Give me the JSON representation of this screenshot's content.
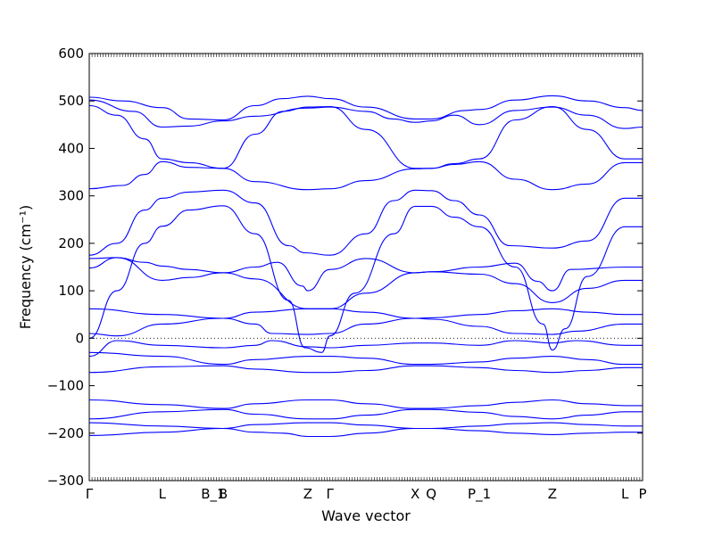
{
  "chart_data": {
    "type": "line",
    "title": "",
    "xlabel": "Wave vector",
    "ylabel": "Frequency (cm⁻¹)",
    "ylim": [
      -300,
      600
    ],
    "y_ticks": [
      -300,
      -200,
      -100,
      0,
      100,
      200,
      300,
      400,
      500,
      600
    ],
    "x_range": [
      0,
      1
    ],
    "x_ticks": [
      {
        "label": "Γ",
        "pos": 0.0
      },
      {
        "label": "L",
        "pos": 0.132
      },
      {
        "label": "B_1",
        "pos": 0.224
      },
      {
        "label": "B",
        "pos": 0.242
      },
      {
        "label": "Z",
        "pos": 0.395
      },
      {
        "label": "Γ",
        "pos": 0.435
      },
      {
        "label": "X",
        "pos": 0.589
      },
      {
        "label": "Q",
        "pos": 0.618
      },
      {
        "label": "P_1",
        "pos": 0.705
      },
      {
        "label": "Z",
        "pos": 0.837
      },
      {
        "label": "L",
        "pos": 0.968
      },
      {
        "label": "P",
        "pos": 1.0
      }
    ],
    "zero_line": {
      "style": "dotted",
      "y": 0
    },
    "series_color": "#0000ff",
    "series": [
      {
        "points": [
          [
            0,
            508
          ],
          [
            0.06,
            500
          ],
          [
            0.132,
            486
          ],
          [
            0.18,
            462
          ],
          [
            0.242,
            460
          ],
          [
            0.3,
            490
          ],
          [
            0.35,
            505
          ],
          [
            0.395,
            510
          ],
          [
            0.435,
            505
          ],
          [
            0.5,
            487
          ],
          [
            0.589,
            462
          ],
          [
            0.618,
            462
          ],
          [
            0.68,
            480
          ],
          [
            0.705,
            482
          ],
          [
            0.77,
            502
          ],
          [
            0.837,
            511
          ],
          [
            0.9,
            500
          ],
          [
            0.968,
            486
          ],
          [
            1,
            480
          ]
        ]
      },
      {
        "points": [
          [
            0,
            502
          ],
          [
            0.08,
            478
          ],
          [
            0.132,
            445
          ],
          [
            0.18,
            447
          ],
          [
            0.242,
            458
          ],
          [
            0.3,
            468
          ],
          [
            0.395,
            485
          ],
          [
            0.435,
            487
          ],
          [
            0.5,
            478
          ],
          [
            0.55,
            462
          ],
          [
            0.589,
            455
          ],
          [
            0.618,
            458
          ],
          [
            0.66,
            470
          ],
          [
            0.705,
            450
          ],
          [
            0.77,
            480
          ],
          [
            0.837,
            487
          ],
          [
            0.9,
            470
          ],
          [
            0.968,
            442
          ],
          [
            1,
            445
          ]
        ]
      },
      {
        "points": [
          [
            0,
            490
          ],
          [
            0.05,
            470
          ],
          [
            0.1,
            420
          ],
          [
            0.132,
            378
          ],
          [
            0.18,
            370
          ],
          [
            0.242,
            358
          ],
          [
            0.3,
            430
          ],
          [
            0.35,
            478
          ],
          [
            0.395,
            487
          ],
          [
            0.435,
            488
          ],
          [
            0.5,
            440
          ],
          [
            0.589,
            358
          ],
          [
            0.618,
            358
          ],
          [
            0.66,
            368
          ],
          [
            0.705,
            378
          ],
          [
            0.77,
            460
          ],
          [
            0.837,
            488
          ],
          [
            0.9,
            440
          ],
          [
            0.968,
            378
          ],
          [
            1,
            378
          ]
        ]
      },
      {
        "points": [
          [
            0,
            315
          ],
          [
            0.06,
            322
          ],
          [
            0.1,
            345
          ],
          [
            0.132,
            372
          ],
          [
            0.18,
            360
          ],
          [
            0.242,
            358
          ],
          [
            0.3,
            330
          ],
          [
            0.395,
            313
          ],
          [
            0.435,
            315
          ],
          [
            0.5,
            332
          ],
          [
            0.589,
            357
          ],
          [
            0.618,
            358
          ],
          [
            0.66,
            366
          ],
          [
            0.705,
            372
          ],
          [
            0.77,
            335
          ],
          [
            0.837,
            313
          ],
          [
            0.9,
            325
          ],
          [
            0.968,
            370
          ],
          [
            1,
            370
          ]
        ]
      },
      {
        "points": [
          [
            0,
            175
          ],
          [
            0.05,
            200
          ],
          [
            0.1,
            270
          ],
          [
            0.132,
            295
          ],
          [
            0.18,
            308
          ],
          [
            0.242,
            312
          ],
          [
            0.3,
            285
          ],
          [
            0.36,
            195
          ],
          [
            0.39,
            180
          ],
          [
            0.435,
            175
          ],
          [
            0.5,
            220
          ],
          [
            0.55,
            290
          ],
          [
            0.589,
            312
          ],
          [
            0.618,
            311
          ],
          [
            0.66,
            290
          ],
          [
            0.705,
            260
          ],
          [
            0.76,
            195
          ],
          [
            0.837,
            190
          ],
          [
            0.9,
            205
          ],
          [
            0.968,
            295
          ],
          [
            1,
            295
          ]
        ]
      },
      {
        "points": [
          [
            0,
            0
          ],
          [
            0.05,
            100
          ],
          [
            0.1,
            200
          ],
          [
            0.132,
            236
          ],
          [
            0.18,
            270
          ],
          [
            0.242,
            279
          ],
          [
            0.3,
            220
          ],
          [
            0.36,
            80
          ],
          [
            0.39,
            -20
          ],
          [
            0.42,
            -30
          ],
          [
            0.435,
            5
          ],
          [
            0.48,
            95
          ],
          [
            0.55,
            220
          ],
          [
            0.589,
            278
          ],
          [
            0.618,
            278
          ],
          [
            0.66,
            255
          ],
          [
            0.705,
            235
          ],
          [
            0.77,
            150
          ],
          [
            0.82,
            30
          ],
          [
            0.837,
            -25
          ],
          [
            0.86,
            20
          ],
          [
            0.9,
            130
          ],
          [
            0.968,
            235
          ],
          [
            1,
            235
          ]
        ]
      },
      {
        "points": [
          [
            0,
            148
          ],
          [
            0.05,
            170
          ],
          [
            0.1,
            160
          ],
          [
            0.132,
            152
          ],
          [
            0.18,
            145
          ],
          [
            0.242,
            138
          ],
          [
            0.3,
            150
          ],
          [
            0.34,
            160
          ],
          [
            0.385,
            110
          ],
          [
            0.395,
            100
          ],
          [
            0.435,
            145
          ],
          [
            0.5,
            168
          ],
          [
            0.589,
            138
          ],
          [
            0.618,
            140
          ],
          [
            0.705,
            150
          ],
          [
            0.77,
            158
          ],
          [
            0.81,
            120
          ],
          [
            0.837,
            100
          ],
          [
            0.87,
            145
          ],
          [
            0.968,
            150
          ],
          [
            1,
            150
          ]
        ]
      },
      {
        "points": [
          [
            0,
            168
          ],
          [
            0.05,
            170
          ],
          [
            0.132,
            122
          ],
          [
            0.18,
            128
          ],
          [
            0.242,
            138
          ],
          [
            0.3,
            125
          ],
          [
            0.395,
            62
          ],
          [
            0.435,
            62
          ],
          [
            0.5,
            95
          ],
          [
            0.589,
            138
          ],
          [
            0.618,
            140
          ],
          [
            0.705,
            135
          ],
          [
            0.77,
            115
          ],
          [
            0.837,
            75
          ],
          [
            0.9,
            105
          ],
          [
            0.968,
            122
          ],
          [
            1,
            122
          ]
        ]
      },
      {
        "points": [
          [
            0,
            62
          ],
          [
            0.132,
            50
          ],
          [
            0.242,
            42
          ],
          [
            0.3,
            55
          ],
          [
            0.395,
            62
          ],
          [
            0.435,
            62
          ],
          [
            0.5,
            55
          ],
          [
            0.589,
            42
          ],
          [
            0.618,
            43
          ],
          [
            0.705,
            50
          ],
          [
            0.77,
            58
          ],
          [
            0.837,
            62
          ],
          [
            0.9,
            55
          ],
          [
            0.968,
            50
          ],
          [
            1,
            50
          ]
        ]
      },
      {
        "points": [
          [
            0,
            10
          ],
          [
            0.05,
            5
          ],
          [
            0.132,
            30
          ],
          [
            0.242,
            42
          ],
          [
            0.3,
            30
          ],
          [
            0.33,
            10
          ],
          [
            0.395,
            8
          ],
          [
            0.435,
            10
          ],
          [
            0.5,
            30
          ],
          [
            0.589,
            42
          ],
          [
            0.618,
            40
          ],
          [
            0.705,
            25
          ],
          [
            0.77,
            10
          ],
          [
            0.837,
            8
          ],
          [
            0.88,
            15
          ],
          [
            0.968,
            30
          ],
          [
            1,
            30
          ]
        ]
      },
      {
        "points": [
          [
            0,
            -38
          ],
          [
            0.05,
            -5
          ],
          [
            0.132,
            -15
          ],
          [
            0.242,
            -20
          ],
          [
            0.3,
            -15
          ],
          [
            0.33,
            -5
          ],
          [
            0.395,
            -18
          ],
          [
            0.435,
            -20
          ],
          [
            0.5,
            -15
          ],
          [
            0.589,
            -10
          ],
          [
            0.618,
            -10
          ],
          [
            0.705,
            -15
          ],
          [
            0.77,
            -5
          ],
          [
            0.837,
            -10
          ],
          [
            0.88,
            -5
          ],
          [
            0.968,
            -15
          ],
          [
            1,
            -15
          ]
        ]
      },
      {
        "points": [
          [
            0,
            -30
          ],
          [
            0.132,
            -38
          ],
          [
            0.242,
            -55
          ],
          [
            0.3,
            -45
          ],
          [
            0.395,
            -38
          ],
          [
            0.435,
            -38
          ],
          [
            0.5,
            -42
          ],
          [
            0.589,
            -55
          ],
          [
            0.618,
            -55
          ],
          [
            0.705,
            -50
          ],
          [
            0.77,
            -42
          ],
          [
            0.837,
            -38
          ],
          [
            0.9,
            -45
          ],
          [
            0.968,
            -55
          ],
          [
            1,
            -55
          ]
        ]
      },
      {
        "points": [
          [
            0,
            -72
          ],
          [
            0.132,
            -60
          ],
          [
            0.242,
            -58
          ],
          [
            0.3,
            -65
          ],
          [
            0.395,
            -72
          ],
          [
            0.435,
            -72
          ],
          [
            0.5,
            -68
          ],
          [
            0.589,
            -58
          ],
          [
            0.618,
            -58
          ],
          [
            0.705,
            -62
          ],
          [
            0.77,
            -68
          ],
          [
            0.837,
            -72
          ],
          [
            0.9,
            -68
          ],
          [
            0.968,
            -62
          ],
          [
            1,
            -62
          ]
        ]
      },
      {
        "points": [
          [
            0,
            -130
          ],
          [
            0.132,
            -140
          ],
          [
            0.242,
            -148
          ],
          [
            0.3,
            -138
          ],
          [
            0.395,
            -130
          ],
          [
            0.435,
            -130
          ],
          [
            0.5,
            -138
          ],
          [
            0.589,
            -148
          ],
          [
            0.618,
            -148
          ],
          [
            0.705,
            -142
          ],
          [
            0.77,
            -135
          ],
          [
            0.837,
            -130
          ],
          [
            0.9,
            -138
          ],
          [
            0.968,
            -142
          ],
          [
            1,
            -142
          ]
        ]
      },
      {
        "points": [
          [
            0,
            -170
          ],
          [
            0.132,
            -155
          ],
          [
            0.242,
            -150
          ],
          [
            0.3,
            -160
          ],
          [
            0.395,
            -170
          ],
          [
            0.435,
            -170
          ],
          [
            0.5,
            -162
          ],
          [
            0.589,
            -150
          ],
          [
            0.618,
            -150
          ],
          [
            0.705,
            -156
          ],
          [
            0.77,
            -165
          ],
          [
            0.837,
            -170
          ],
          [
            0.9,
            -162
          ],
          [
            0.968,
            -155
          ],
          [
            1,
            -155
          ]
        ]
      },
      {
        "points": [
          [
            0,
            -178
          ],
          [
            0.132,
            -185
          ],
          [
            0.242,
            -190
          ],
          [
            0.3,
            -182
          ],
          [
            0.395,
            -178
          ],
          [
            0.435,
            -178
          ],
          [
            0.5,
            -183
          ],
          [
            0.589,
            -190
          ],
          [
            0.618,
            -190
          ],
          [
            0.705,
            -185
          ],
          [
            0.77,
            -180
          ],
          [
            0.837,
            -178
          ],
          [
            0.9,
            -182
          ],
          [
            0.968,
            -185
          ],
          [
            1,
            -185
          ]
        ]
      },
      {
        "points": [
          [
            0,
            -205
          ],
          [
            0.132,
            -198
          ],
          [
            0.242,
            -190
          ],
          [
            0.3,
            -198
          ],
          [
            0.35,
            -200
          ],
          [
            0.395,
            -207
          ],
          [
            0.435,
            -207
          ],
          [
            0.5,
            -200
          ],
          [
            0.589,
            -190
          ],
          [
            0.618,
            -190
          ],
          [
            0.705,
            -195
          ],
          [
            0.77,
            -200
          ],
          [
            0.837,
            -203
          ],
          [
            0.9,
            -200
          ],
          [
            0.968,
            -198
          ],
          [
            1,
            -198
          ]
        ]
      }
    ]
  }
}
